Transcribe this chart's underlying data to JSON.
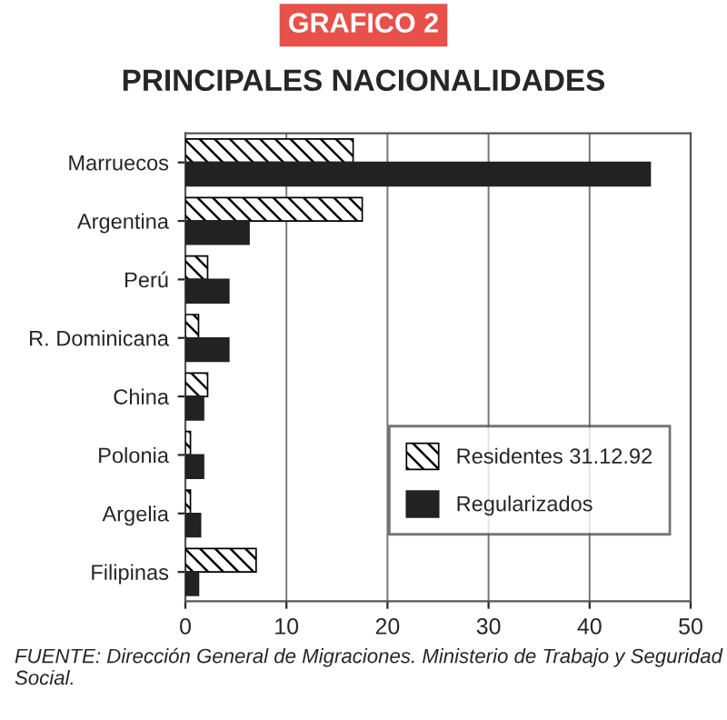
{
  "chart_data": {
    "type": "bar",
    "orientation": "horizontal",
    "title": "GRAFICO 2",
    "subtitle": "PRINCIPALES NACIONALIDADES",
    "categories": [
      "Marruecos",
      "Argentina",
      "Perú",
      "R. Dominicana",
      "China",
      "Polonia",
      "Argelia",
      "Filipinas"
    ],
    "series": [
      {
        "name": "Residentes 31.12.92",
        "color": "#000000",
        "values": [
          16.6,
          17.5,
          2.2,
          1.3,
          2.2,
          0.5,
          0.5,
          7
        ]
      },
      {
        "name": "Regularizados",
        "color": "#222222",
        "values": [
          46,
          6.3,
          4.3,
          4.3,
          1.8,
          1.8,
          1.5,
          1.3
        ]
      }
    ],
    "xlim": [
      0,
      50
    ],
    "xticks": [
      0,
      10,
      20,
      30,
      40,
      50
    ],
    "grid": "x",
    "legend": "bottom right",
    "annotations": [
      "FUENTE: Dirección General de Migraciones. Ministerio de Trabajo y Seguridad Social."
    ]
  }
}
